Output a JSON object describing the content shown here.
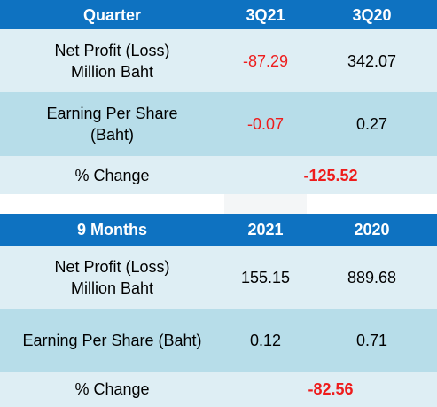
{
  "quarter_table": {
    "header": {
      "label": "Quarter",
      "col1": "3Q21",
      "col2": "3Q20"
    },
    "net_profit": {
      "label_line1": "Net Profit (Loss)",
      "label_line2": "Million Baht",
      "col1": "-87.29",
      "col2": "342.07"
    },
    "eps": {
      "label_line1": "Earning Per Share",
      "label_line2": "(Baht)",
      "col1": "-0.07",
      "col2": "0.27"
    },
    "change": {
      "label": "% Change",
      "value": "-125.52"
    }
  },
  "nine_months_table": {
    "header": {
      "label": "9 Months",
      "col1": "2021",
      "col2": "2020"
    },
    "net_profit": {
      "label_line1": "Net Profit (Loss)",
      "label_line2": "Million Baht",
      "col1": "155.15",
      "col2": "889.68"
    },
    "eps": {
      "label": "Earning Per Share (Baht)",
      "col1": "0.12",
      "col2": "0.71"
    },
    "change": {
      "label": "% Change",
      "value": "-82.56"
    }
  },
  "colors": {
    "header_bg": "#0e72c1",
    "row_light": "#deeef4",
    "row_dark": "#b7dde9",
    "negative": "#ee1c1c"
  }
}
